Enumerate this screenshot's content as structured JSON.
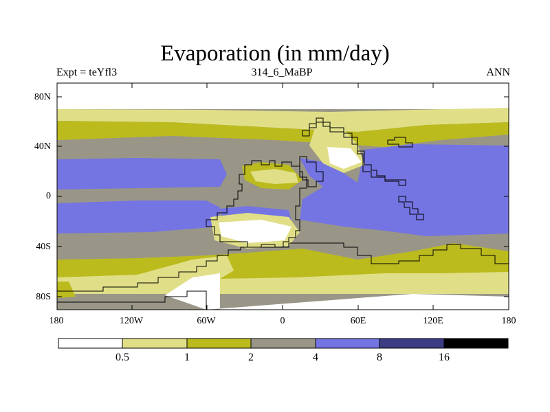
{
  "title": "Evaporation (in mm/day)",
  "experiment_label": "Expt = teYfl3",
  "period_label": "314_6_MaBP",
  "season_label": "ANN",
  "y_ticks": [
    "80N",
    "40N",
    "0",
    "40S",
    "80S"
  ],
  "x_ticks": [
    "180",
    "120W",
    "60W",
    "0",
    "60E",
    "120E",
    "180"
  ],
  "colorbar": {
    "labels": [
      "0.5",
      "1",
      "2",
      "4",
      "8",
      "16"
    ],
    "colors": [
      "#ffffff",
      "#e0df88",
      "#bcbb1e",
      "#999688",
      "#7474e2",
      "#3c3c84",
      "#000000"
    ]
  },
  "map_colors": {
    "lt05": "#ffffff",
    "b05_1": "#e0df88",
    "b1_2": "#bcbb1e",
    "b2_4": "#999688",
    "b4_8": "#7474e2",
    "coast": "#000000"
  }
}
